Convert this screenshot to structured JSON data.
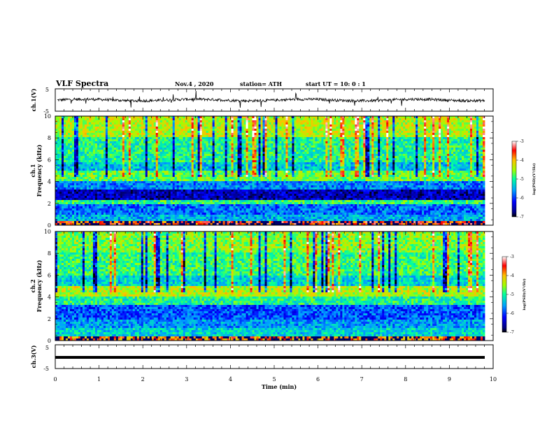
{
  "header": {
    "title": "VLF Spectra",
    "date": "Nov.4 , 2020",
    "station": "station= ATH",
    "start": "start UT = 10: 0 : 1"
  },
  "chart_data": [
    {
      "type": "line",
      "name": "ch1-waveform",
      "ylabel": "ch.1(V)",
      "ylim": [
        -5,
        5
      ],
      "yticks": [
        "5",
        "-5"
      ],
      "xlim": [
        0,
        10
      ],
      "baseline": 0,
      "noise_amplitude": 1.2
    },
    {
      "type": "heatmap",
      "name": "ch1-spectrogram",
      "ylabel_top": "ch.1",
      "ylabel": "Frequency (kHz)",
      "ylim": [
        0,
        10
      ],
      "yticks": [
        "0",
        "2",
        "4",
        "6",
        "8",
        "10"
      ],
      "xlim": [
        0,
        10
      ],
      "colorbar": {
        "label": "log(PSD)(V²/Hz)",
        "range": [
          -7,
          -3
        ],
        "ticks": [
          "-3",
          "-4",
          "-5",
          "-6",
          "-7"
        ]
      },
      "bands": [
        {
          "f0": 0.0,
          "f1": 0.4,
          "level": -3.6
        },
        {
          "f0": 0.4,
          "f1": 1.0,
          "level": -5.5
        },
        {
          "f0": 1.0,
          "f1": 1.9,
          "level": -5.8
        },
        {
          "f0": 1.9,
          "f1": 2.3,
          "level": -4.9
        },
        {
          "f0": 2.3,
          "f1": 3.2,
          "level": -6.5
        },
        {
          "f0": 3.2,
          "f1": 4.0,
          "level": -5.7
        },
        {
          "f0": 4.0,
          "f1": 5.0,
          "level": -4.7
        },
        {
          "f0": 5.0,
          "f1": 5.8,
          "level": -5.4
        },
        {
          "f0": 5.8,
          "f1": 8.0,
          "level": -5.0
        },
        {
          "f0": 8.0,
          "f1": 10.0,
          "level": -4.4
        }
      ]
    },
    {
      "type": "heatmap",
      "name": "ch2-spectrogram",
      "ylabel_top": "ch.2",
      "ylabel": "Frequency (kHz)",
      "ylim": [
        0,
        10
      ],
      "yticks": [
        "0",
        "2",
        "4",
        "6",
        "8",
        "10"
      ],
      "xlim": [
        0,
        10
      ],
      "colorbar": {
        "label": "log(PSD)(V²/Hz)",
        "range": [
          -7,
          -3
        ],
        "ticks": [
          "-3",
          "-4",
          "-5",
          "-6",
          "-7"
        ]
      },
      "bands": [
        {
          "f0": 0.0,
          "f1": 0.4,
          "level": -3.8
        },
        {
          "f0": 0.4,
          "f1": 1.2,
          "level": -5.3
        },
        {
          "f0": 1.2,
          "f1": 2.0,
          "level": -5.6
        },
        {
          "f0": 2.0,
          "f1": 3.2,
          "level": -5.9
        },
        {
          "f0": 3.2,
          "f1": 4.0,
          "level": -5.0
        },
        {
          "f0": 4.0,
          "f1": 5.0,
          "level": -4.4
        },
        {
          "f0": 5.0,
          "f1": 6.0,
          "level": -5.3
        },
        {
          "f0": 6.0,
          "f1": 8.0,
          "level": -4.9
        },
        {
          "f0": 8.0,
          "f1": 10.0,
          "level": -4.6
        }
      ]
    },
    {
      "type": "line",
      "name": "ch3-waveform",
      "ylabel": "ch.3(V)",
      "ylim": [
        -5,
        5
      ],
      "yticks": [
        "5",
        "-5"
      ],
      "xlim": [
        0,
        10
      ],
      "baseline": 0,
      "noise_amplitude": 0.0
    }
  ],
  "xaxis": {
    "label": "Time (min)",
    "ticks": [
      "0",
      "1",
      "2",
      "3",
      "4",
      "5",
      "6",
      "7",
      "8",
      "9",
      "10"
    ]
  }
}
